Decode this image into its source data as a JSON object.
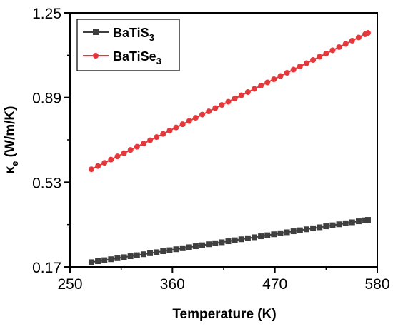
{
  "chart_data": {
    "type": "line",
    "xlabel": "Temperature (K)",
    "ylabel_main": "κ",
    "ylabel_sub": "e",
    "ylabel_rest": " (W/m/K)",
    "xlim": [
      250,
      580
    ],
    "ylim": [
      0.17,
      1.25
    ],
    "xticks": [
      250,
      360,
      470,
      580
    ],
    "xtick_labels": [
      "250",
      "360",
      "470",
      "580"
    ],
    "yticks": [
      0.17,
      0.53,
      0.89,
      1.25
    ],
    "ytick_labels": [
      "0.17",
      "0.53",
      "0.89",
      "1.25"
    ],
    "x": [
      273,
      280,
      287,
      294,
      301,
      308,
      315,
      322,
      329,
      336,
      343,
      350,
      357,
      364,
      371,
      378,
      385,
      392,
      399,
      406,
      413,
      420,
      427,
      434,
      441,
      448,
      455,
      462,
      469,
      476,
      483,
      490,
      497,
      504,
      511,
      518,
      525,
      532,
      539,
      546,
      553,
      560,
      567,
      570
    ],
    "legend_position": "top-left",
    "series": [
      {
        "name_main": "BaTiS",
        "name_sub": "3",
        "color": "#3f3f3f",
        "marker": "square",
        "start": 0.19,
        "end": 0.37
      },
      {
        "name_main": "BaTiSe",
        "name_sub": "3",
        "color": "#e5383b",
        "marker": "circle",
        "start": 0.585,
        "end": 1.165
      }
    ]
  }
}
